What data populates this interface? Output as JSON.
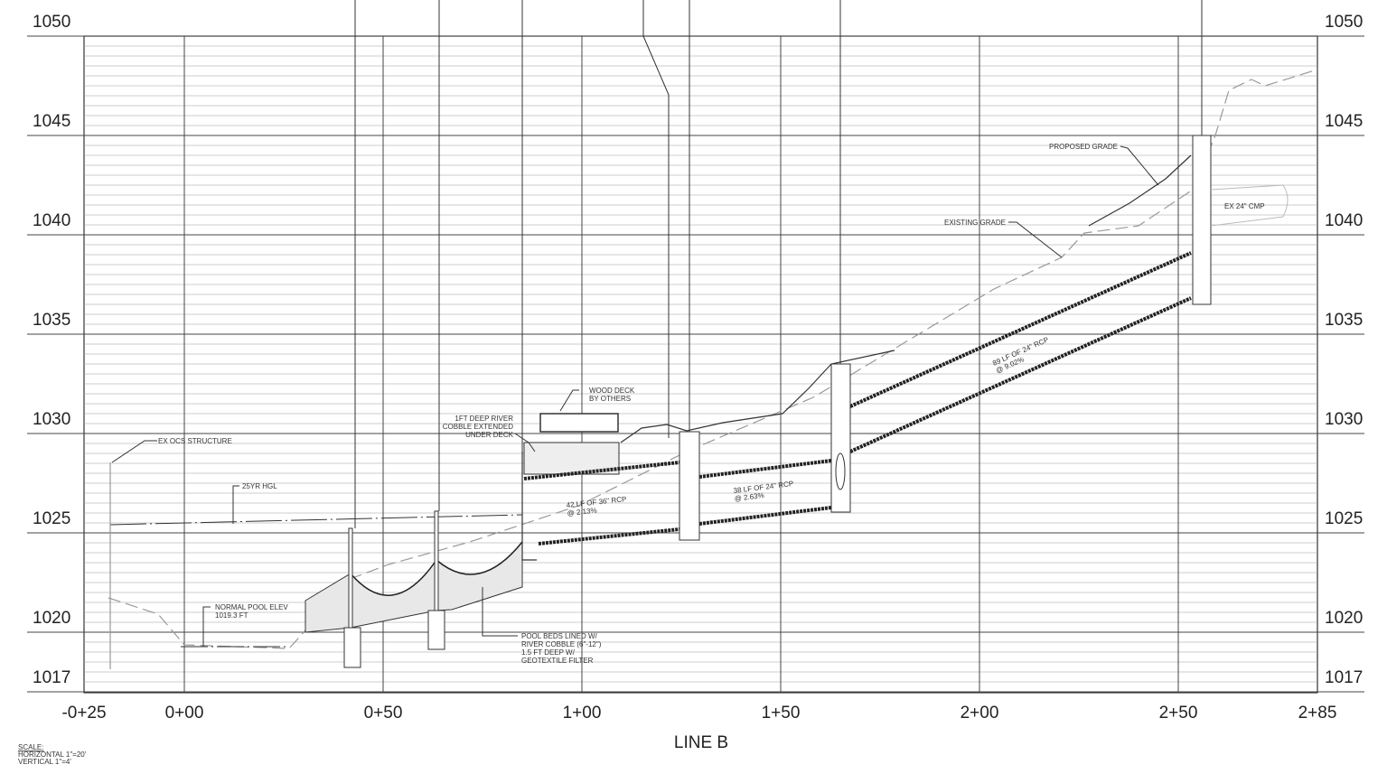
{
  "elevations": [
    1050,
    1045,
    1040,
    1035,
    1030,
    1025,
    1020,
    1017
  ],
  "stations": [
    "-0+25",
    "0+00",
    "0+50",
    "1+00",
    "1+50",
    "2+00",
    "2+50",
    "2+85"
  ],
  "title": "LINE B",
  "scale": [
    "SCALE:",
    "HORIZONTAL 1\"=20'",
    "VERTICAL 1\"=4'"
  ],
  "annotations": {
    "ex_ocs": "EX OCS STRUCTURE",
    "hgl": "25YR HGL",
    "normal_pool": [
      "NORMAL POOL ELEV",
      "1019.3 FT"
    ],
    "wood_deck": [
      "WOOD DECK",
      "BY OTHERS"
    ],
    "river_cobble": [
      "1FT DEEP RIVER",
      "COBBLE EXTENDED",
      "UNDER DECK"
    ],
    "pipe1": [
      "42 LF OF 36\" RCP",
      "@ 2.13%"
    ],
    "pipe2": [
      "38 LF OF 24\" RCP",
      "@ 2.63%"
    ],
    "pipe3": [
      "89 LF OF 24\" RCP",
      "@ 9.02%"
    ],
    "pool_beds": [
      "POOL BEDS LINED W/",
      "RIVER COBBLE (6\"-12\")",
      "1.5 FT DEEP W/",
      "GEOTEXTILE FILTER"
    ],
    "proposed_grade": "PROPOSED GRADE",
    "existing_grade": "EXISTING GRADE",
    "ex_cmp": "EX 24\" CMP"
  }
}
